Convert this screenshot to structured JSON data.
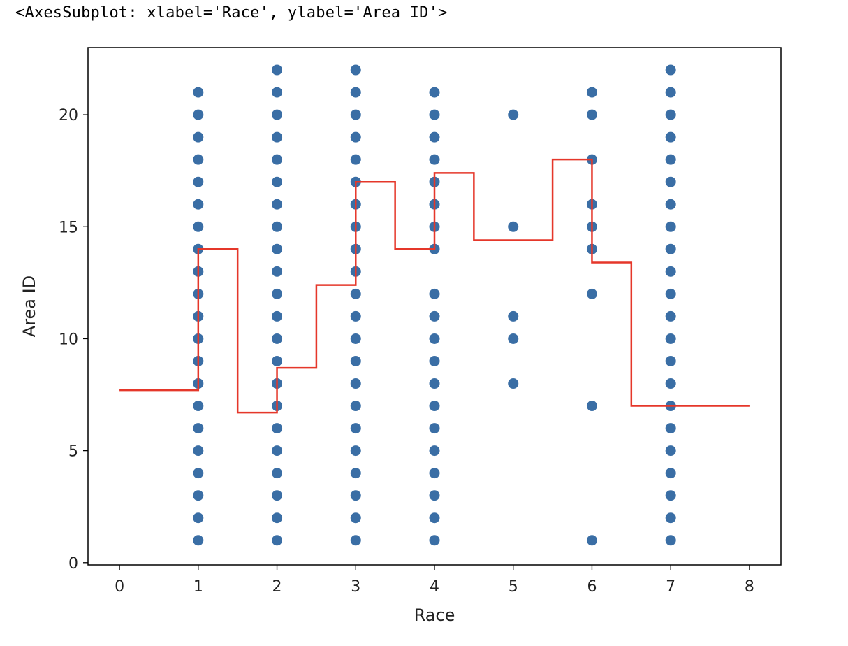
{
  "output_header": "<AxesSubplot: xlabel='Race', ylabel='Area ID'>",
  "colors": {
    "points": "#3a6ea5",
    "line": "#e5372a",
    "axes": "#000000"
  },
  "chart_data": {
    "type": "scatter",
    "title": "",
    "xlabel": "Race",
    "ylabel": "Area ID",
    "xlim": [
      -0.4,
      8.4
    ],
    "ylim": [
      -0.1,
      23.0
    ],
    "xticks": [
      0,
      1,
      2,
      3,
      4,
      5,
      6,
      7,
      8
    ],
    "yticks": [
      0,
      5,
      10,
      15,
      20
    ],
    "grid": false,
    "scatter_points": [
      {
        "x": 1,
        "y": [
          1,
          2,
          3,
          4,
          5,
          6,
          7,
          8,
          9,
          10,
          11,
          12,
          13,
          14,
          15,
          16,
          17,
          18,
          19,
          20,
          21
        ]
      },
      {
        "x": 2,
        "y": [
          1,
          2,
          3,
          4,
          5,
          6,
          7,
          8,
          9,
          10,
          11,
          12,
          13,
          14,
          15,
          16,
          17,
          18,
          19,
          20,
          21,
          22
        ]
      },
      {
        "x": 3,
        "y": [
          1,
          2,
          3,
          4,
          5,
          6,
          7,
          8,
          9,
          10,
          11,
          12,
          13,
          14,
          15,
          16,
          17,
          18,
          19,
          20,
          21,
          22
        ]
      },
      {
        "x": 4,
        "y": [
          1,
          2,
          3,
          4,
          5,
          6,
          7,
          8,
          9,
          10,
          11,
          12,
          14,
          15,
          16,
          17,
          18,
          19,
          20,
          21
        ]
      },
      {
        "x": 5,
        "y": [
          8,
          10,
          11,
          15,
          20
        ]
      },
      {
        "x": 6,
        "y": [
          1,
          7,
          12,
          14,
          15,
          16,
          18,
          20,
          21
        ]
      },
      {
        "x": 7,
        "y": [
          1,
          2,
          3,
          4,
          5,
          6,
          7,
          8,
          9,
          10,
          11,
          12,
          13,
          14,
          15,
          16,
          17,
          18,
          19,
          20,
          21,
          22
        ]
      }
    ],
    "step_line": {
      "x": [
        0,
        1,
        1.5,
        2,
        2.5,
        3,
        3.5,
        4,
        4.5,
        5.5,
        6,
        6.5,
        8
      ],
      "y": [
        7.7,
        14.0,
        6.7,
        8.7,
        12.4,
        17.0,
        14.0,
        17.4,
        14.4,
        18.0,
        13.4,
        7.0,
        7.0
      ]
    }
  }
}
